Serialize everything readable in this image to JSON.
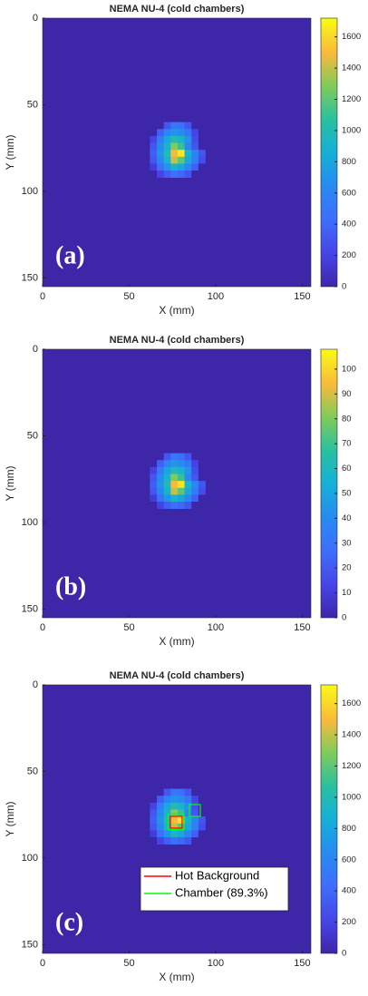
{
  "chart_data": [
    {
      "type": "heatmap",
      "title": "NEMA NU-4 (cold chambers)",
      "xlabel": "X (mm)",
      "ylabel": "Y (mm)",
      "panel_label": "(a)",
      "xlim": [
        0,
        155
      ],
      "ylim": [
        0,
        155
      ],
      "y_reversed": true,
      "xticks": [
        0,
        50,
        100,
        150
      ],
      "yticks": [
        0,
        50,
        100,
        150
      ],
      "colormap": "parula",
      "clim": [
        0,
        1720
      ],
      "cticks": [
        0,
        200,
        400,
        600,
        800,
        1000,
        1200,
        1400,
        1600
      ],
      "x": [
        64,
        68,
        72,
        76,
        80,
        84,
        88,
        92
      ],
      "y": [
        62,
        66,
        70,
        74,
        78,
        82,
        86,
        90
      ],
      "values": [
        [
          0,
          0,
          300,
          500,
          450,
          300,
          0,
          0
        ],
        [
          0,
          350,
          600,
          700,
          650,
          500,
          200,
          0
        ],
        [
          200,
          550,
          800,
          1000,
          900,
          700,
          250,
          0
        ],
        [
          300,
          650,
          900,
          1300,
          1100,
          600,
          300,
          0
        ],
        [
          350,
          700,
          1000,
          1500,
          1650,
          900,
          600,
          300
        ],
        [
          300,
          600,
          900,
          1400,
          1200,
          800,
          550,
          250
        ],
        [
          150,
          450,
          700,
          900,
          800,
          600,
          350,
          0
        ],
        [
          0,
          200,
          350,
          450,
          400,
          300,
          0,
          0
        ]
      ]
    },
    {
      "type": "heatmap",
      "title": "NEMA NU-4 (cold chambers)",
      "xlabel": "X (mm)",
      "ylabel": "Y (mm)",
      "panel_label": "(b)",
      "xlim": [
        0,
        155
      ],
      "ylim": [
        0,
        155
      ],
      "y_reversed": true,
      "xticks": [
        0,
        50,
        100,
        150
      ],
      "yticks": [
        0,
        50,
        100,
        150
      ],
      "colormap": "parula",
      "clim": [
        0,
        108
      ],
      "cticks": [
        0,
        10,
        20,
        30,
        40,
        50,
        60,
        70,
        80,
        90,
        100
      ],
      "x": [
        64,
        68,
        72,
        76,
        80,
        84,
        88,
        92
      ],
      "y": [
        62,
        66,
        70,
        74,
        78,
        82,
        86,
        90
      ],
      "values": [
        [
          0,
          0,
          19,
          31,
          28,
          19,
          0,
          0
        ],
        [
          0,
          22,
          38,
          44,
          41,
          31,
          12,
          0
        ],
        [
          12,
          34,
          50,
          62,
          56,
          44,
          16,
          0
        ],
        [
          19,
          41,
          56,
          81,
          69,
          38,
          19,
          0
        ],
        [
          22,
          44,
          62,
          94,
          103,
          56,
          38,
          19
        ],
        [
          19,
          38,
          56,
          88,
          75,
          50,
          34,
          16
        ],
        [
          9,
          28,
          44,
          56,
          50,
          38,
          22,
          0
        ],
        [
          0,
          12,
          22,
          28,
          25,
          19,
          0,
          0
        ]
      ]
    },
    {
      "type": "heatmap",
      "title": "NEMA NU-4 (cold chambers)",
      "xlabel": "X (mm)",
      "ylabel": "Y (mm)",
      "panel_label": "(c)",
      "xlim": [
        0,
        155
      ],
      "ylim": [
        0,
        155
      ],
      "y_reversed": true,
      "xticks": [
        0,
        50,
        100,
        150
      ],
      "yticks": [
        0,
        50,
        100,
        150
      ],
      "colormap": "parula",
      "clim": [
        0,
        1720
      ],
      "cticks": [
        0,
        200,
        400,
        600,
        800,
        1000,
        1200,
        1400,
        1600
      ],
      "x": [
        64,
        68,
        72,
        76,
        80,
        84,
        88,
        92
      ],
      "y": [
        62,
        66,
        70,
        74,
        78,
        82,
        86,
        90
      ],
      "values": [
        [
          0,
          0,
          300,
          500,
          450,
          300,
          0,
          0
        ],
        [
          0,
          350,
          600,
          700,
          650,
          500,
          200,
          0
        ],
        [
          200,
          550,
          800,
          1000,
          900,
          700,
          250,
          0
        ],
        [
          300,
          650,
          900,
          1300,
          1100,
          600,
          300,
          0
        ],
        [
          350,
          700,
          1000,
          1500,
          1650,
          900,
          600,
          300
        ],
        [
          300,
          600,
          900,
          1400,
          1200,
          800,
          550,
          250
        ],
        [
          150,
          450,
          700,
          900,
          800,
          600,
          350,
          0
        ],
        [
          0,
          200,
          350,
          450,
          400,
          300,
          0,
          0
        ]
      ],
      "legend": "lower right",
      "series": [
        {
          "name": "Hot Background",
          "color": "#ff0000",
          "boxes": [
            [
              73.8,
              75.9,
              80.6,
              82.7
            ]
          ]
        },
        {
          "name": "Chamber (89.3%)",
          "color": "#00ff00",
          "boxes": [
            [
              84.8,
              69.1,
              91.1,
              75.9
            ],
            [
              72.5,
              74.5,
              81.5,
              83.5
            ]
          ]
        }
      ]
    }
  ]
}
